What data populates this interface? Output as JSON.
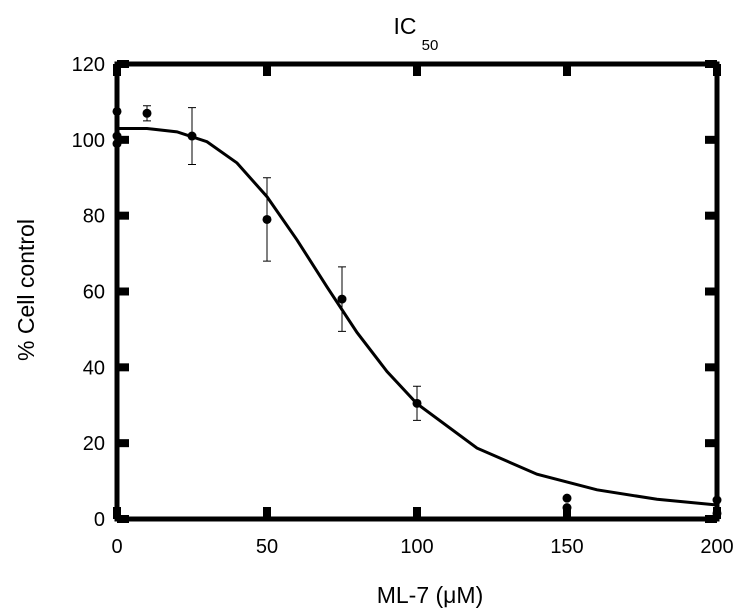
{
  "chart_data": {
    "type": "scatter",
    "title": "IC",
    "title_subscript": "50",
    "x_label": "ML-7 (μM)",
    "y_label": "% Cell control",
    "xlim": [
      0,
      200
    ],
    "ylim": [
      0,
      120
    ],
    "xticks": [
      0,
      50,
      100,
      150,
      200
    ],
    "yticks": [
      0,
      20,
      40,
      60,
      80,
      100,
      120
    ],
    "color": "#000000",
    "x": [
      0,
      0,
      0,
      10,
      25,
      50,
      75,
      100,
      150,
      150,
      200,
      200
    ],
    "values": [
      107.5,
      101,
      99,
      107,
      101,
      79,
      58,
      30.5,
      5.5,
      3,
      5,
      1.5
    ],
    "errors": [
      null,
      null,
      null,
      2,
      7.5,
      11,
      8.5,
      4.5,
      null,
      null,
      null,
      null
    ],
    "fit": {
      "x": [
        0,
        10,
        20,
        30,
        40,
        50,
        60,
        70,
        80,
        90,
        100,
        120,
        140,
        160,
        180,
        200
      ],
      "values": [
        103,
        103,
        102.1,
        99.5,
        93.9,
        85,
        73.6,
        61.2,
        49.2,
        38.9,
        30.4,
        18.7,
        11.8,
        7.7,
        5.2,
        3.7
      ]
    }
  }
}
